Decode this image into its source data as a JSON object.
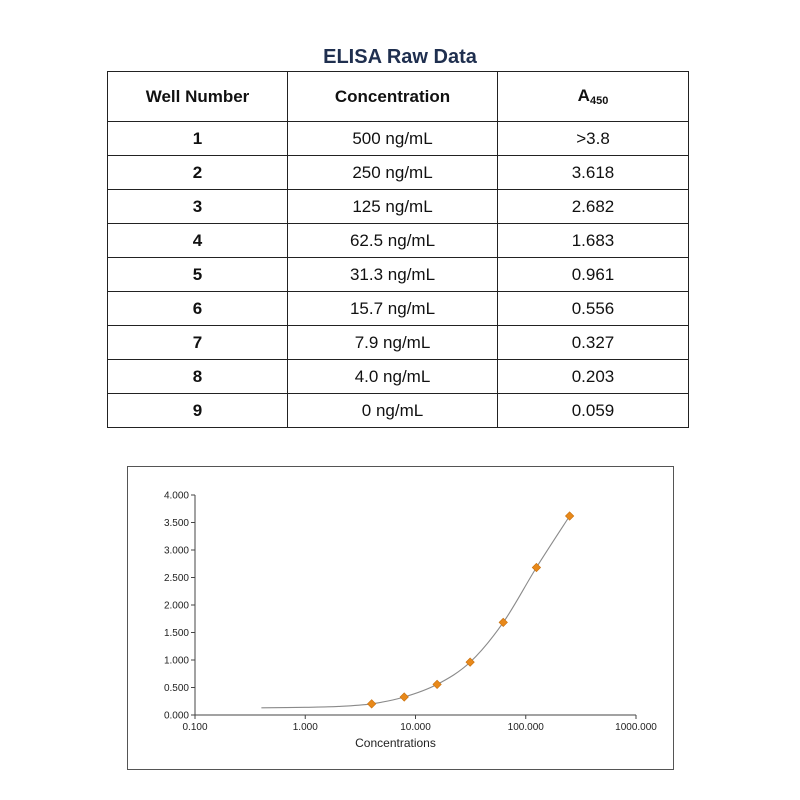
{
  "table": {
    "title": "ELISA Raw Data",
    "headers": {
      "well": "Well Number",
      "concentration": "Concentration",
      "absorbance": "A",
      "absorbance_sub": "450"
    },
    "rows": [
      {
        "well": "1",
        "concentration": "500 ng/mL",
        "absorbance": ">3.8"
      },
      {
        "well": "2",
        "concentration": "250 ng/mL",
        "absorbance": "3.618"
      },
      {
        "well": "3",
        "concentration": "125 ng/mL",
        "absorbance": "2.682"
      },
      {
        "well": "4",
        "concentration": "62.5 ng/mL",
        "absorbance": "1.683"
      },
      {
        "well": "5",
        "concentration": "31.3 ng/mL",
        "absorbance": "0.961"
      },
      {
        "well": "6",
        "concentration": "15.7 ng/mL",
        "absorbance": "0.556"
      },
      {
        "well": "7",
        "concentration": "7.9 ng/mL",
        "absorbance": "0.327"
      },
      {
        "well": "8",
        "concentration": "4.0 ng/mL",
        "absorbance": "0.203"
      },
      {
        "well": "9",
        "concentration": "0 ng/mL",
        "absorbance": "0.059"
      }
    ]
  },
  "chart_data": {
    "type": "scatter",
    "title": "",
    "xlabel": "Concentrations",
    "ylabel": "",
    "xscale": "log",
    "xlim": [
      0.1,
      1000
    ],
    "ylim": [
      0,
      4
    ],
    "xticks": [
      "0.100",
      "1.000",
      "10.000",
      "100.000",
      "1000.000"
    ],
    "yticks": [
      "0.000",
      "0.500",
      "1.000",
      "1.500",
      "2.000",
      "2.500",
      "3.000",
      "3.500",
      "4.000"
    ],
    "grid": false,
    "legend": "none",
    "marker_color": "#e8891a",
    "line_color": "#8a8a8a",
    "points": [
      {
        "x": 4.0,
        "y": 0.203
      },
      {
        "x": 7.9,
        "y": 0.327
      },
      {
        "x": 15.7,
        "y": 0.556
      },
      {
        "x": 31.3,
        "y": 0.961
      },
      {
        "x": 62.5,
        "y": 1.683
      },
      {
        "x": 125,
        "y": 2.682
      },
      {
        "x": 250,
        "y": 3.618
      }
    ],
    "fit_curve": [
      {
        "x": 0.4,
        "y": 0.13
      },
      {
        "x": 1.0,
        "y": 0.14
      },
      {
        "x": 2.0,
        "y": 0.155
      },
      {
        "x": 4.0,
        "y": 0.203
      },
      {
        "x": 7.9,
        "y": 0.327
      },
      {
        "x": 15.7,
        "y": 0.556
      },
      {
        "x": 31.3,
        "y": 0.961
      },
      {
        "x": 62.5,
        "y": 1.683
      },
      {
        "x": 125,
        "y": 2.682
      },
      {
        "x": 250,
        "y": 3.618
      }
    ]
  }
}
